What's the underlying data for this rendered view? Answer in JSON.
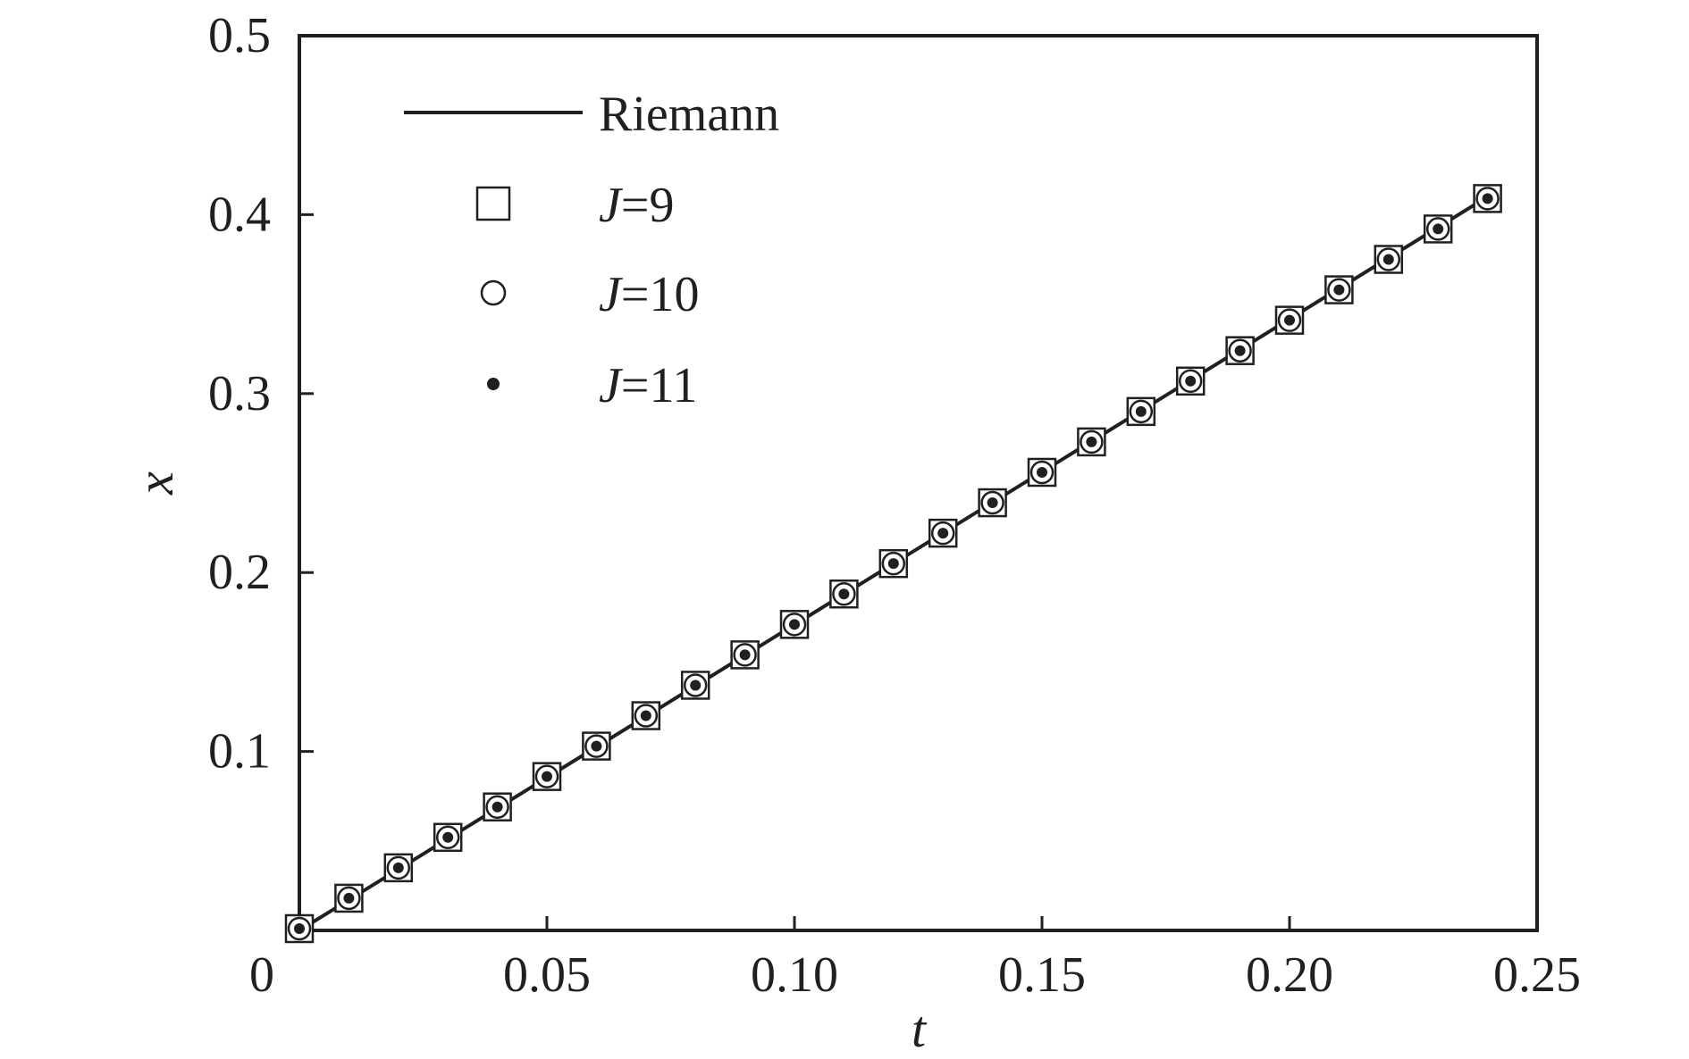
{
  "chart_data": {
    "type": "line",
    "xlabel": "t",
    "ylabel": "x",
    "xlim": [
      0,
      0.25
    ],
    "ylim": [
      0,
      0.5
    ],
    "xticks": [
      0,
      0.05,
      0.1,
      0.15,
      0.2,
      0.25
    ],
    "xtick_labels": [
      "0",
      "0.05",
      "0.10",
      "0.15",
      "0.20",
      "0.25"
    ],
    "yticks": [
      0.1,
      0.2,
      0.3,
      0.4,
      0.5
    ],
    "ytick_labels": [
      "0.1",
      "0.2",
      "0.3",
      "0.4",
      "0.5"
    ],
    "grid": false,
    "legend_position": "top-left",
    "series": [
      {
        "name": "Riemann",
        "style": "line",
        "x": [
          0,
          0.24
        ],
        "y": [
          0,
          0.41
        ]
      },
      {
        "name": "J=9",
        "name_italic_part": "J",
        "name_rest": "=9",
        "style": "open-square",
        "x": [
          0.0,
          0.01,
          0.02,
          0.03,
          0.04,
          0.05,
          0.06,
          0.07,
          0.08,
          0.09,
          0.1,
          0.11,
          0.12,
          0.13,
          0.14,
          0.15,
          0.16,
          0.17,
          0.18,
          0.19,
          0.2,
          0.21,
          0.22,
          0.23,
          0.24
        ],
        "y": [
          0.001,
          0.018,
          0.035,
          0.052,
          0.069,
          0.086,
          0.103,
          0.12,
          0.137,
          0.154,
          0.171,
          0.188,
          0.205,
          0.222,
          0.239,
          0.256,
          0.273,
          0.29,
          0.307,
          0.324,
          0.341,
          0.358,
          0.375,
          0.392,
          0.409
        ]
      },
      {
        "name": "J=10",
        "name_italic_part": "J",
        "name_rest": "=10",
        "style": "open-circle",
        "x": [
          0.0,
          0.01,
          0.02,
          0.03,
          0.04,
          0.05,
          0.06,
          0.07,
          0.08,
          0.09,
          0.1,
          0.11,
          0.12,
          0.13,
          0.14,
          0.15,
          0.16,
          0.17,
          0.18,
          0.19,
          0.2,
          0.21,
          0.22,
          0.23,
          0.24
        ],
        "y": [
          0.001,
          0.018,
          0.035,
          0.052,
          0.069,
          0.086,
          0.103,
          0.12,
          0.137,
          0.154,
          0.171,
          0.188,
          0.205,
          0.222,
          0.239,
          0.256,
          0.273,
          0.29,
          0.307,
          0.324,
          0.341,
          0.358,
          0.375,
          0.392,
          0.409
        ]
      },
      {
        "name": "J=11",
        "name_italic_part": "J",
        "name_rest": "=11",
        "style": "filled-dot",
        "x": [
          0.0,
          0.01,
          0.02,
          0.03,
          0.04,
          0.05,
          0.06,
          0.07,
          0.08,
          0.09,
          0.1,
          0.11,
          0.12,
          0.13,
          0.14,
          0.15,
          0.16,
          0.17,
          0.18,
          0.19,
          0.2,
          0.21,
          0.22,
          0.23,
          0.24
        ],
        "y": [
          0.001,
          0.018,
          0.035,
          0.052,
          0.069,
          0.086,
          0.103,
          0.12,
          0.137,
          0.154,
          0.171,
          0.188,
          0.205,
          0.222,
          0.239,
          0.256,
          0.273,
          0.29,
          0.307,
          0.324,
          0.341,
          0.358,
          0.375,
          0.392,
          0.409
        ]
      }
    ],
    "colors": {
      "ink": "#231f20",
      "background": "#ffffff"
    }
  }
}
